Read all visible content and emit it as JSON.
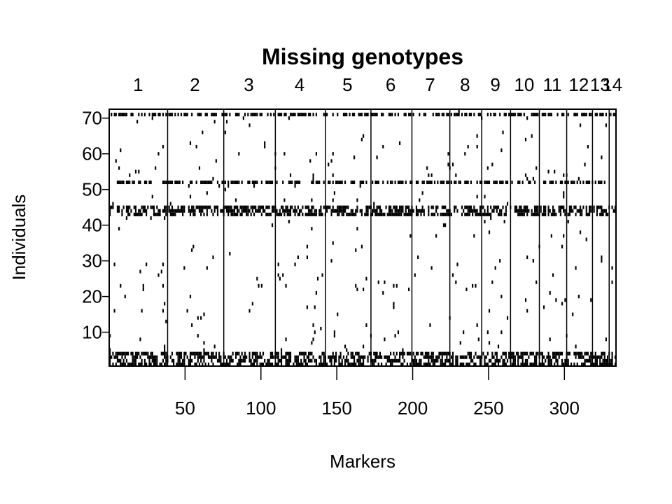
{
  "chart_data": {
    "type": "heatmap",
    "title": "Missing genotypes",
    "xlabel": "Markers",
    "ylabel": "Individuals",
    "xlim": [
      0,
      334
    ],
    "ylim": [
      1,
      72
    ],
    "x_ticks": [
      50,
      100,
      150,
      200,
      250,
      300
    ],
    "y_ticks": [
      10,
      20,
      30,
      40,
      50,
      60,
      70
    ],
    "chromosome_labels": [
      "1",
      "2",
      "3",
      "4",
      "5",
      "6",
      "7",
      "8",
      "9",
      "10",
      "11",
      "12",
      "13",
      "14"
    ],
    "chromosome_boundaries": [
      38,
      75,
      109,
      142,
      172,
      199,
      224,
      245,
      264,
      283,
      301,
      318,
      329
    ],
    "n_markers": 334,
    "n_individuals": 72,
    "rows_mostly_missing": [
      1,
      2,
      3,
      4,
      43,
      44,
      45,
      52,
      71
    ],
    "grid": false,
    "legend": "none"
  },
  "colors": {
    "missing": "#000000",
    "background": "#ffffff"
  }
}
